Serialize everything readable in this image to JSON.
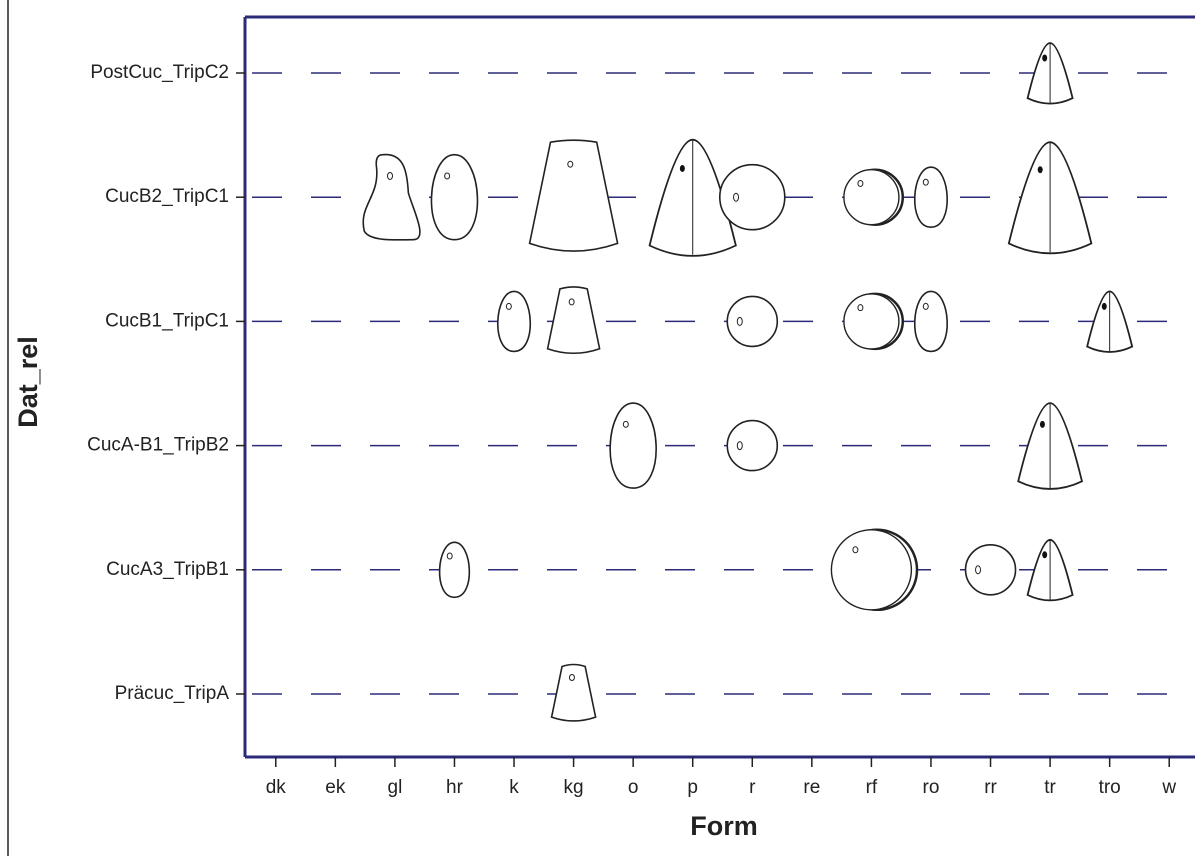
{
  "chart_data": {
    "type": "scatter",
    "x_label": "Form",
    "y_label": "Dat_rel",
    "x_categories": [
      "dk",
      "ek",
      "gl",
      "hr",
      "k",
      "kg",
      "o",
      "p",
      "r",
      "re",
      "rf",
      "ro",
      "rr",
      "tr",
      "tro",
      "w"
    ],
    "y_categories": [
      "Präcuc_TripA",
      "CucA3_TripB1",
      "CucA-B1_TripB2",
      "CucB1_TripC1",
      "CucB2_TripC1",
      "PostCuc_TripC2"
    ],
    "points": {
      "x": [
        "tr",
        "gl",
        "hr",
        "kg",
        "p",
        "r",
        "rf",
        "ro",
        "tr",
        "k",
        "kg",
        "r",
        "rf",
        "ro",
        "tro",
        "o",
        "r",
        "tr",
        "hr",
        "rf",
        "rr",
        "tr",
        "kg"
      ],
      "y": [
        "PostCuc_TripC2",
        "CucB2_TripC1",
        "CucB2_TripC1",
        "CucB2_TripC1",
        "CucB2_TripC1",
        "CucB2_TripC1",
        "CucB2_TripC1",
        "CucB2_TripC1",
        "CucB2_TripC1",
        "CucB1_TripC1",
        "CucB1_TripC1",
        "CucB1_TripC1",
        "CucB1_TripC1",
        "CucB1_TripC1",
        "CucB1_TripC1",
        "CucA-B1_TripB2",
        "CucA-B1_TripB2",
        "CucA-B1_TripB2",
        "CucA3_TripB1",
        "CucA3_TripB1",
        "CucA3_TripB1",
        "CucA3_TripB1",
        "Präcuc_TripA"
      ],
      "sizes": [
        60,
        85,
        85,
        110,
        115,
        65,
        55,
        60,
        110,
        60,
        65,
        50,
        55,
        60,
        60,
        85,
        50,
        85,
        55,
        80,
        50,
        60,
        55
      ]
    },
    "color": "#2b2b7a"
  }
}
